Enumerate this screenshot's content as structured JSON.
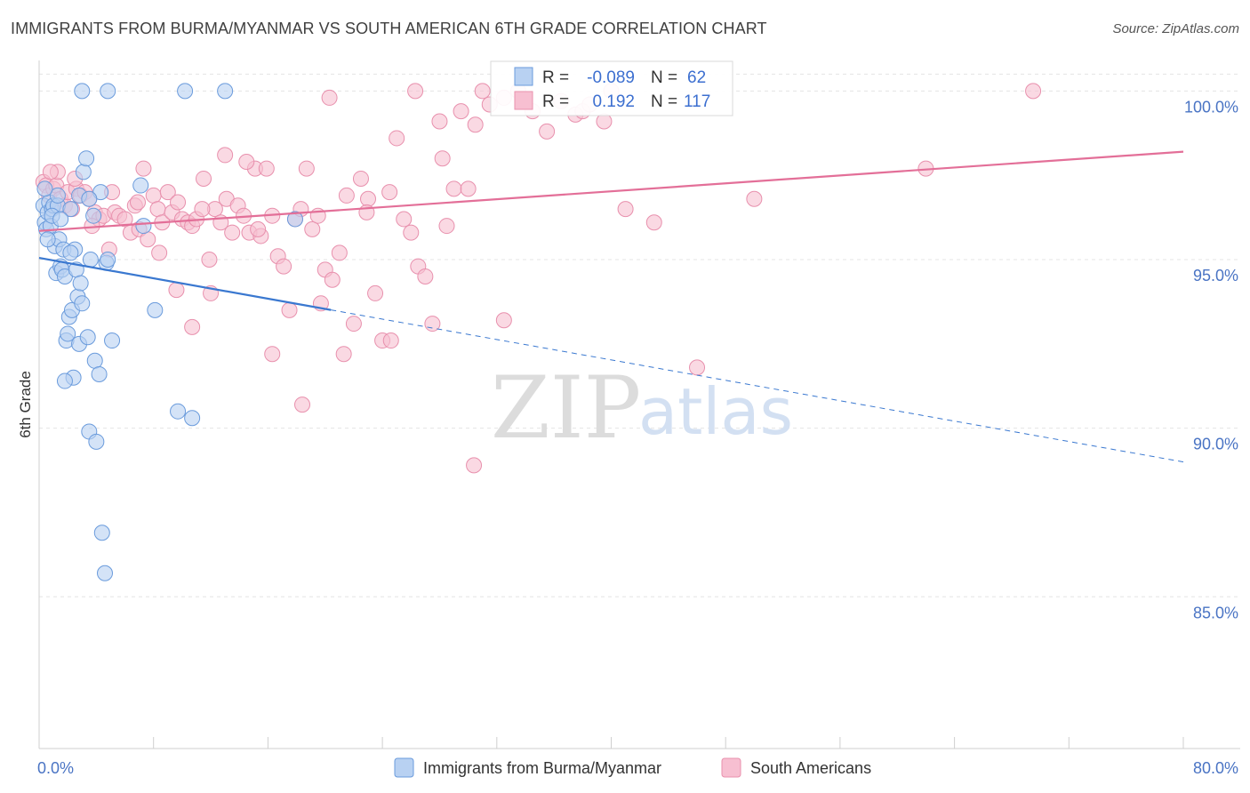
{
  "title": "IMMIGRANTS FROM BURMA/MYANMAR VS SOUTH AMERICAN 6TH GRADE CORRELATION CHART",
  "source": "Source: ZipAtlas.com",
  "watermark": {
    "zip": "ZIP",
    "atlas": "atlas"
  },
  "colors": {
    "blue_fill": "#b8d1f2",
    "blue_stroke": "#6a9bdc",
    "blue_line": "#3a78d0",
    "pink_fill": "#f7bfd1",
    "pink_stroke": "#e890ad",
    "pink_line": "#e36f98",
    "tick_label": "#4a74c4",
    "grid": "#e4e4e4"
  },
  "legend_box": {
    "rows": [
      {
        "series": "blue",
        "r_label": "R =",
        "r_value": "-0.089",
        "n_label": "N =",
        "n_value": "62"
      },
      {
        "series": "pink",
        "r_label": "R =",
        "r_value": "0.192",
        "n_label": "N =",
        "n_value": "117"
      }
    ]
  },
  "chart_data": {
    "type": "scatter",
    "title": "IMMIGRANTS FROM BURMA/MYANMAR VS SOUTH AMERICAN 6TH GRADE CORRELATION CHART",
    "xlabel": "",
    "ylabel": "6th Grade",
    "xlim": [
      0,
      80
    ],
    "ylim": [
      80.5,
      100.8
    ],
    "x_tick_labels": [
      "0.0%",
      "80.0%"
    ],
    "y_ticks": [
      {
        "value": 100,
        "label": "100.0%"
      },
      {
        "value": 95,
        "label": "95.0%"
      },
      {
        "value": 90,
        "label": "90.0%"
      },
      {
        "value": 85,
        "label": "85.0%"
      }
    ],
    "grid": true,
    "legend_position": "bottom",
    "series": [
      {
        "name": "Immigrants from Burma/Myanmar",
        "color": "blue",
        "trend": {
          "x": [
            0,
            80
          ],
          "y": [
            95.05,
            89.0
          ],
          "solid_until_x": 20.4
        },
        "points": [
          [
            0.3,
            96.6
          ],
          [
            0.4,
            96.1
          ],
          [
            0.5,
            95.9
          ],
          [
            0.6,
            96.4
          ],
          [
            0.7,
            96.7
          ],
          [
            0.8,
            96.0
          ],
          [
            0.9,
            96.5
          ],
          [
            1.0,
            96.6
          ],
          [
            1.1,
            95.4
          ],
          [
            1.2,
            94.6
          ],
          [
            1.3,
            96.6
          ],
          [
            1.4,
            95.6
          ],
          [
            1.5,
            94.8
          ],
          [
            1.6,
            94.7
          ],
          [
            1.7,
            95.3
          ],
          [
            1.8,
            94.5
          ],
          [
            1.9,
            92.6
          ],
          [
            2.0,
            92.8
          ],
          [
            2.1,
            93.3
          ],
          [
            2.2,
            96.5
          ],
          [
            2.3,
            93.5
          ],
          [
            2.4,
            91.5
          ],
          [
            2.5,
            95.3
          ],
          [
            2.6,
            94.7
          ],
          [
            2.7,
            93.9
          ],
          [
            2.8,
            92.5
          ],
          [
            2.9,
            94.3
          ],
          [
            3.0,
            93.7
          ],
          [
            3.1,
            97.6
          ],
          [
            3.3,
            98.0
          ],
          [
            3.4,
            92.7
          ],
          [
            3.5,
            89.9
          ],
          [
            3.6,
            95.0
          ],
          [
            3.8,
            96.3
          ],
          [
            3.9,
            92.0
          ],
          [
            4.0,
            89.6
          ],
          [
            4.2,
            91.6
          ],
          [
            4.3,
            97.0
          ],
          [
            4.4,
            86.9
          ],
          [
            4.6,
            85.7
          ],
          [
            4.7,
            94.9
          ],
          [
            4.8,
            95.0
          ],
          [
            5.1,
            92.6
          ],
          [
            1.8,
            91.4
          ],
          [
            7.1,
            97.2
          ],
          [
            8.1,
            93.5
          ],
          [
            9.7,
            90.5
          ],
          [
            10.7,
            90.3
          ],
          [
            0.9,
            96.3
          ],
          [
            1.3,
            96.9
          ],
          [
            2.2,
            95.2
          ],
          [
            2.8,
            96.9
          ],
          [
            3.5,
            96.8
          ],
          [
            1.5,
            96.2
          ],
          [
            0.6,
            95.6
          ],
          [
            7.3,
            96.0
          ],
          [
            17.9,
            96.2
          ],
          [
            3.0,
            100.0
          ],
          [
            4.8,
            100.0
          ],
          [
            10.2,
            100.0
          ],
          [
            13.0,
            100.0
          ],
          [
            0.4,
            97.1
          ]
        ]
      },
      {
        "name": "South Americans",
        "color": "pink",
        "trend": {
          "x": [
            0,
            80
          ],
          "y": [
            95.85,
            98.2
          ]
        },
        "points": [
          [
            0.3,
            97.3
          ],
          [
            0.5,
            97.2
          ],
          [
            0.7,
            96.9
          ],
          [
            1.0,
            97.1
          ],
          [
            1.2,
            97.2
          ],
          [
            1.5,
            96.8
          ],
          [
            1.8,
            96.6
          ],
          [
            2.0,
            97.0
          ],
          [
            2.3,
            96.5
          ],
          [
            2.6,
            97.1
          ],
          [
            2.9,
            96.9
          ],
          [
            3.2,
            97.0
          ],
          [
            3.5,
            96.8
          ],
          [
            3.9,
            96.4
          ],
          [
            4.2,
            96.2
          ],
          [
            4.5,
            96.3
          ],
          [
            4.9,
            95.3
          ],
          [
            5.3,
            96.4
          ],
          [
            5.6,
            96.3
          ],
          [
            6.0,
            96.2
          ],
          [
            6.4,
            95.8
          ],
          [
            6.7,
            96.6
          ],
          [
            7.0,
            95.9
          ],
          [
            7.3,
            97.7
          ],
          [
            7.6,
            95.6
          ],
          [
            8.0,
            96.9
          ],
          [
            8.3,
            96.5
          ],
          [
            8.6,
            96.1
          ],
          [
            9.0,
            97.0
          ],
          [
            9.3,
            96.4
          ],
          [
            9.7,
            96.7
          ],
          [
            10.0,
            96.2
          ],
          [
            10.4,
            96.1
          ],
          [
            10.7,
            96.0
          ],
          [
            11.0,
            96.2
          ],
          [
            11.5,
            97.4
          ],
          [
            11.9,
            95.0
          ],
          [
            12.3,
            96.5
          ],
          [
            12.7,
            96.1
          ],
          [
            13.1,
            96.8
          ],
          [
            13.5,
            95.8
          ],
          [
            13.9,
            96.6
          ],
          [
            14.3,
            96.3
          ],
          [
            14.7,
            95.8
          ],
          [
            15.1,
            97.7
          ],
          [
            15.5,
            95.7
          ],
          [
            15.9,
            97.7
          ],
          [
            16.3,
            96.3
          ],
          [
            16.7,
            95.1
          ],
          [
            17.1,
            94.8
          ],
          [
            17.5,
            93.5
          ],
          [
            17.9,
            96.2
          ],
          [
            18.3,
            96.5
          ],
          [
            18.7,
            97.7
          ],
          [
            19.1,
            95.9
          ],
          [
            19.5,
            96.3
          ],
          [
            20.0,
            94.7
          ],
          [
            20.5,
            94.4
          ],
          [
            21.0,
            95.2
          ],
          [
            21.5,
            96.9
          ],
          [
            22.0,
            93.1
          ],
          [
            22.5,
            97.4
          ],
          [
            23.0,
            96.8
          ],
          [
            23.5,
            94.0
          ],
          [
            24.0,
            92.6
          ],
          [
            24.5,
            97.0
          ],
          [
            25.0,
            98.6
          ],
          [
            25.5,
            96.2
          ],
          [
            26.0,
            95.8
          ],
          [
            26.5,
            94.8
          ],
          [
            27.0,
            94.5
          ],
          [
            27.5,
            93.1
          ],
          [
            28.0,
            99.1
          ],
          [
            28.5,
            96.0
          ],
          [
            29.0,
            97.1
          ],
          [
            29.5,
            99.4
          ],
          [
            30.0,
            97.1
          ],
          [
            30.5,
            99.0
          ],
          [
            31.0,
            100.0
          ],
          [
            31.5,
            99.6
          ],
          [
            32.5,
            99.8
          ],
          [
            33.5,
            100.0
          ],
          [
            34.5,
            99.4
          ],
          [
            35.5,
            98.8
          ],
          [
            36.5,
            99.7
          ],
          [
            37.5,
            99.3
          ],
          [
            38.0,
            99.4
          ],
          [
            38.5,
            99.6
          ],
          [
            39.5,
            99.1
          ],
          [
            40.0,
            100.0
          ],
          [
            41.0,
            96.5
          ],
          [
            43.0,
            96.1
          ],
          [
            46.0,
            91.8
          ],
          [
            50.0,
            96.8
          ],
          [
            62.0,
            97.7
          ],
          [
            69.5,
            100.0
          ],
          [
            10.7,
            93.0
          ],
          [
            12.0,
            94.0
          ],
          [
            14.5,
            97.9
          ],
          [
            16.3,
            92.2
          ],
          [
            18.4,
            90.7
          ],
          [
            21.3,
            92.2
          ],
          [
            24.6,
            92.6
          ],
          [
            28.2,
            98.0
          ],
          [
            30.4,
            88.9
          ],
          [
            32.5,
            93.2
          ],
          [
            26.3,
            100.0
          ],
          [
            20.3,
            99.8
          ],
          [
            8.4,
            95.2
          ],
          [
            13.0,
            98.1
          ],
          [
            9.6,
            94.1
          ],
          [
            11.4,
            96.5
          ],
          [
            5.1,
            97.0
          ],
          [
            3.7,
            96.0
          ],
          [
            6.9,
            96.7
          ],
          [
            15.3,
            95.9
          ],
          [
            19.7,
            93.7
          ],
          [
            22.9,
            96.4
          ],
          [
            2.5,
            97.4
          ],
          [
            1.3,
            97.6
          ],
          [
            0.8,
            97.6
          ]
        ]
      }
    ]
  }
}
